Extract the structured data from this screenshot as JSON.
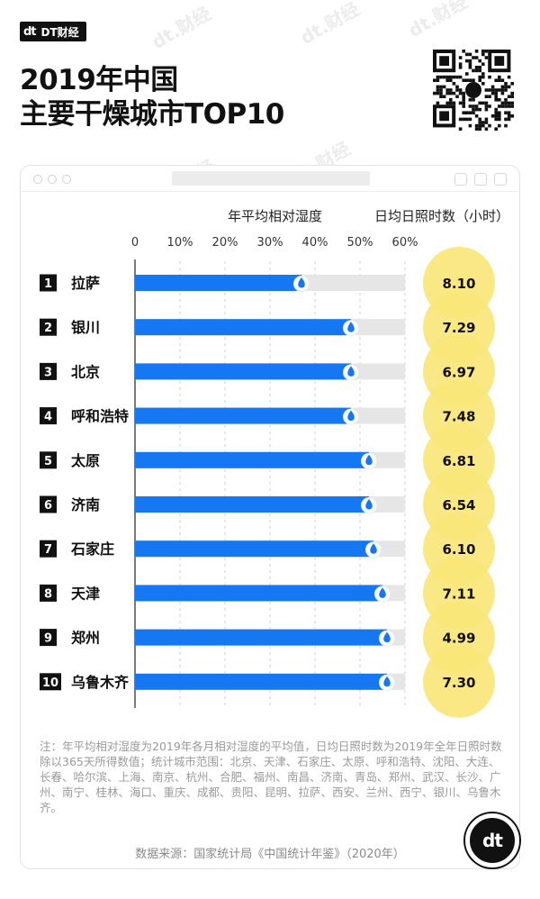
{
  "brand": {
    "logo": "dt",
    "name": "DT财经"
  },
  "title_line1": "2019年中国",
  "title_line2": "主要干燥城市TOP10",
  "watermark_text": "dt.财经",
  "headers": {
    "humidity": "年平均相对湿度",
    "sunshine": "日均日照时数（小时）"
  },
  "chart_data": {
    "type": "bar",
    "orientation": "horizontal",
    "xlim": [
      0,
      60
    ],
    "ticks": [
      0,
      10,
      20,
      30,
      40,
      50,
      60
    ],
    "tick_labels": [
      "0",
      "10%",
      "20%",
      "30%",
      "40%",
      "50%",
      "60%"
    ],
    "grid": "vertical dashed",
    "ranks": [
      "1",
      "2",
      "3",
      "4",
      "5",
      "6",
      "7",
      "8",
      "9",
      "10"
    ],
    "categories": [
      "拉萨",
      "银川",
      "北京",
      "呼和浩特",
      "太原",
      "济南",
      "石家庄",
      "天津",
      "郑州",
      "乌鲁木齐"
    ],
    "series": [
      {
        "values": [
          37,
          48,
          48,
          48,
          52,
          52,
          53,
          55,
          56,
          56
        ]
      }
    ],
    "sunshine_hours": [
      "8.10",
      "7.29",
      "6.97",
      "7.48",
      "6.81",
      "6.54",
      "6.10",
      "7.11",
      "4.99",
      "7.30"
    ],
    "colors": {
      "bar": "#1677f2",
      "track": "#e6e6e6",
      "bubble": "#f9e67a",
      "drop": "#1677f2"
    }
  },
  "note": "注：年平均相对湿度为2019年各月相对湿度的平均值，日均日照时数为2019年全年日照时数除以365天所得数值；统计城市范围：北京、天津、石家庄、太原、呼和浩特、沈阳、大连、长春、哈尔滨、上海、南京、杭州、合肥、福州、南昌、济南、青岛、郑州、武汉、长沙、广州、南宁、桂林、海口、重庆、成都、贵阳、昆明、拉萨、西安、兰州、西宁、银川、乌鲁木齐。",
  "source": "数据来源：国家统计局《中国统计年鉴》（2020年）",
  "corner_logo": "dt"
}
